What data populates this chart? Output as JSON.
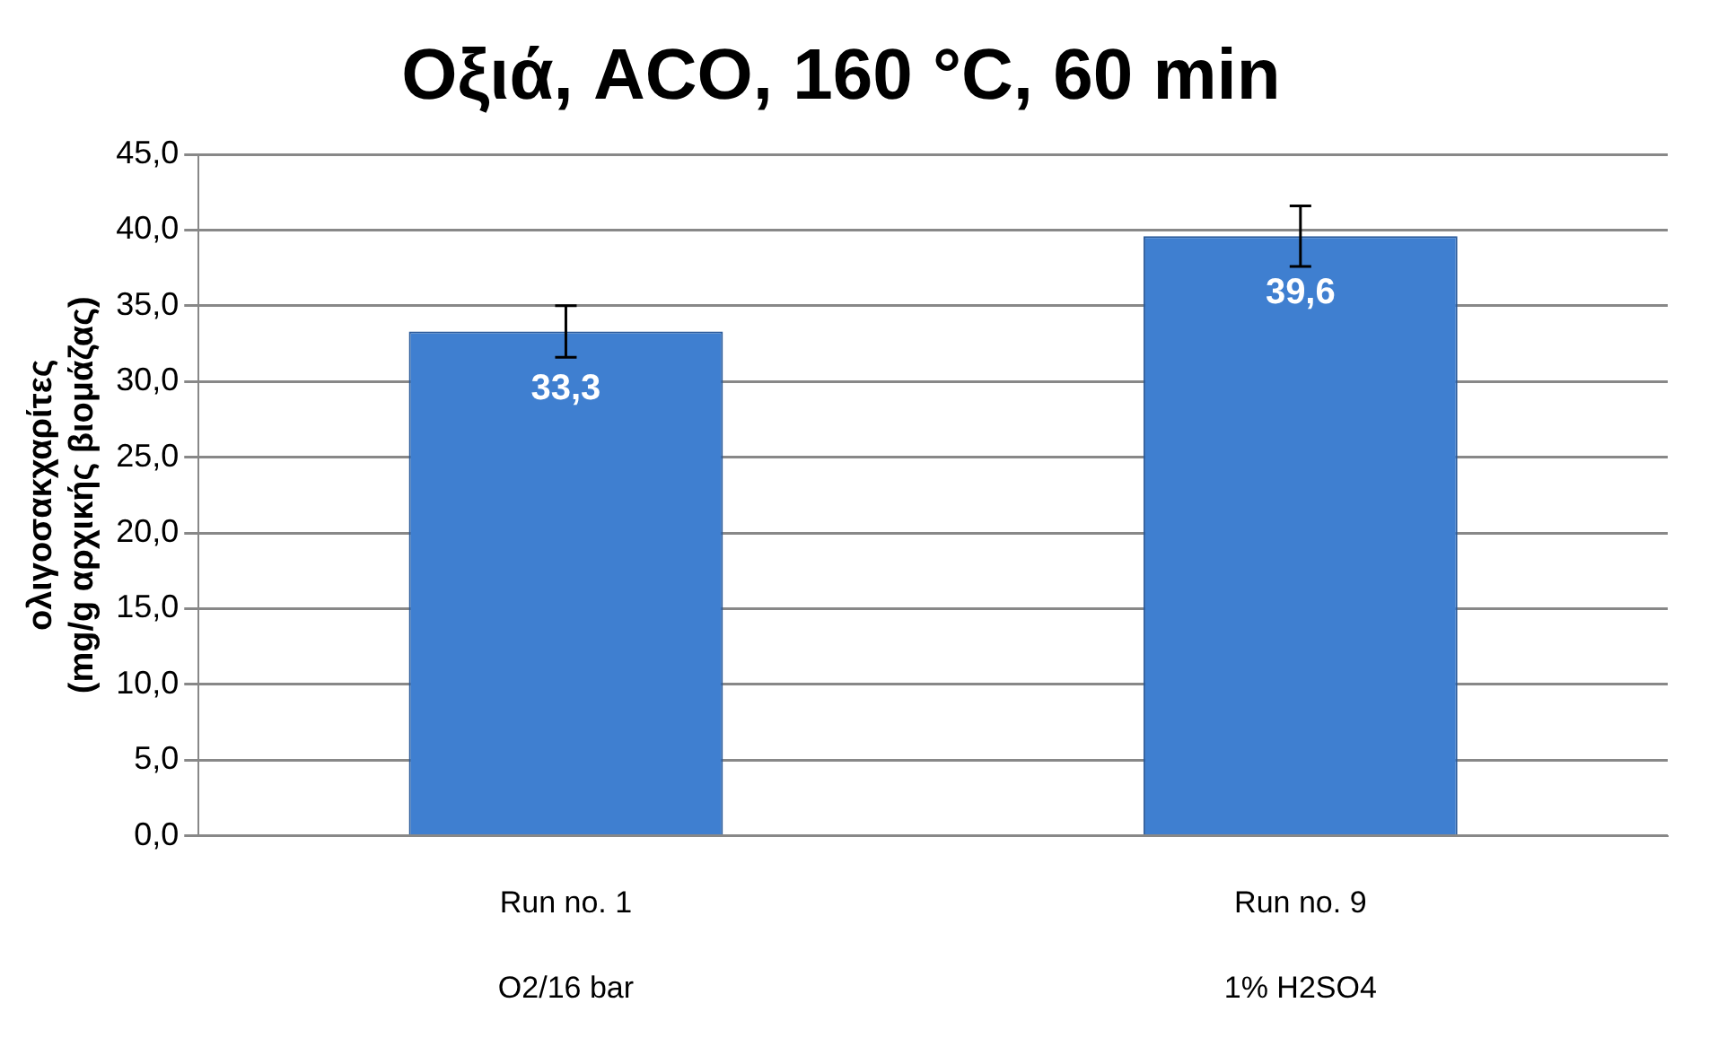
{
  "chart_data": {
    "type": "bar",
    "title": "Οξιά, ACO, 160 °C, 60 min",
    "ylabel": "ολιγοσακχαρίτες\n(mg/g αρχικής βιομάζας)",
    "categories": [
      "Run no. 1\nO2/16 bar",
      "Run no. 9\n1% H2SO4"
    ],
    "values": [
      33.3,
      39.6
    ],
    "color": "#3f7fd0",
    "errors": [
      1.7,
      2.0
    ],
    "value_labels": [
      "33,3",
      "39,6"
    ],
    "ylim": [
      0,
      45
    ],
    "yticks": [
      {
        "value": 0,
        "label": "0,0"
      },
      {
        "value": 5,
        "label": "5,0"
      },
      {
        "value": 10,
        "label": "10,0"
      },
      {
        "value": 15,
        "label": "15,0"
      },
      {
        "value": 20,
        "label": "20,0"
      },
      {
        "value": 25,
        "label": "25,0"
      },
      {
        "value": 30,
        "label": "30,0"
      },
      {
        "value": 35,
        "label": "35,0"
      },
      {
        "value": 40,
        "label": "40,0"
      },
      {
        "value": 45,
        "label": "45,0"
      }
    ],
    "grid": "y"
  }
}
